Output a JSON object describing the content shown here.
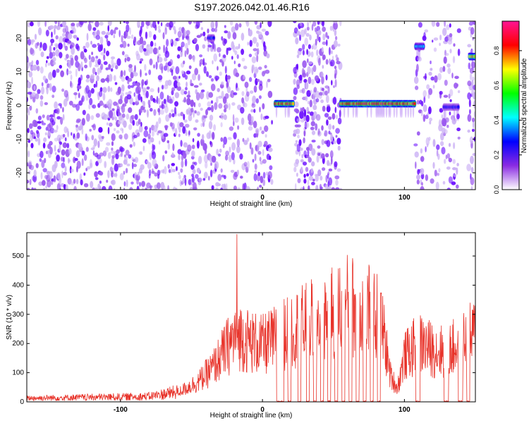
{
  "title": "S197.2026.042.01.46.R16",
  "chart_data": [
    {
      "type": "heatmap",
      "xlabel": "Height of straight line (km)",
      "ylabel": "Frequency (Hz)",
      "xlim": [
        -166,
        150
      ],
      "ylim": [
        -25,
        25
      ],
      "xticks": [
        -100,
        0,
        100
      ],
      "xtick_labels": [
        "-100",
        "0",
        "100"
      ],
      "yticks": [
        -20,
        -10,
        0,
        10,
        20
      ],
      "ytick_labels": [
        "-20",
        "-10",
        "0",
        "10",
        "20"
      ],
      "colorbar": {
        "label": "Normalized spectral amplitude",
        "range": [
          0.0,
          0.97
        ],
        "ticks": [
          0.0,
          0.2,
          0.4,
          0.6,
          0.8
        ],
        "tick_labels": [
          "0.0",
          "0.2",
          "0.4",
          "0.6",
          "0.8"
        ],
        "colormap": [
          "#ffffff",
          "#8a2be2",
          "#0000ff",
          "#00ffff",
          "#00ff00",
          "#ffff00",
          "#ff0000",
          "#ff1493"
        ]
      },
      "blank_gaps_km": [
        [
          6,
          22
        ],
        [
          55,
          108
        ],
        [
          138,
          146
        ]
      ],
      "bands": [
        {
          "x": [
            9,
            22
          ],
          "freq": 0.5,
          "peak": 0.95
        },
        {
          "x": [
            55,
            108
          ],
          "freq": 0.5,
          "peak": 0.95
        },
        {
          "x": [
            108,
            114
          ],
          "freq": 17.5,
          "peak": 0.45
        },
        {
          "x": [
            128,
            138
          ],
          "freq": -0.5,
          "peak": 0.3
        },
        {
          "x": [
            146,
            150
          ],
          "freq": 14.5,
          "peak": 0.8
        },
        {
          "x": [
            -38,
            -34
          ],
          "freq": 20,
          "peak": 0.35
        }
      ]
    },
    {
      "type": "line",
      "xlabel": "Height of straight line (km)",
      "ylabel": "SNR (10 * v/v)",
      "xlim": [
        -166,
        150
      ],
      "ylim": [
        0,
        580
      ],
      "xticks": [
        -100,
        0,
        100
      ],
      "xtick_labels": [
        "-100",
        "0",
        "100"
      ],
      "yticks": [
        0,
        100,
        200,
        300,
        400,
        500
      ],
      "ytick_labels": [
        "0",
        "100",
        "200",
        "300",
        "400",
        "500"
      ],
      "color": "#e8332a",
      "envelope": {
        "x": [
          -166,
          -100,
          -80,
          -60,
          -45,
          -35,
          -25,
          -18,
          -10,
          0,
          10,
          20,
          30,
          40,
          50,
          60,
          70,
          80,
          85,
          90,
          95,
          100,
          110,
          120,
          130,
          140,
          150
        ],
        "y": [
          15,
          20,
          22,
          40,
          90,
          150,
          240,
          300,
          270,
          250,
          280,
          320,
          340,
          370,
          400,
          430,
          410,
          380,
          320,
          120,
          60,
          200,
          260,
          230,
          220,
          260,
          300
        ]
      },
      "spike": {
        "x": -18,
        "y": 575
      },
      "dropout_gaps_km": [
        [
          10,
          15
        ],
        [
          18,
          20
        ],
        [
          25,
          27
        ],
        [
          31,
          33
        ],
        [
          36,
          38
        ],
        [
          41,
          43
        ],
        [
          46,
          48
        ],
        [
          51,
          53
        ],
        [
          56,
          58
        ],
        [
          61,
          63
        ],
        [
          66,
          68
        ],
        [
          71,
          73
        ],
        [
          76,
          78
        ],
        [
          81,
          83
        ],
        [
          108,
          111
        ],
        [
          128,
          131
        ],
        [
          138,
          141
        ],
        [
          144,
          146
        ]
      ]
    }
  ]
}
